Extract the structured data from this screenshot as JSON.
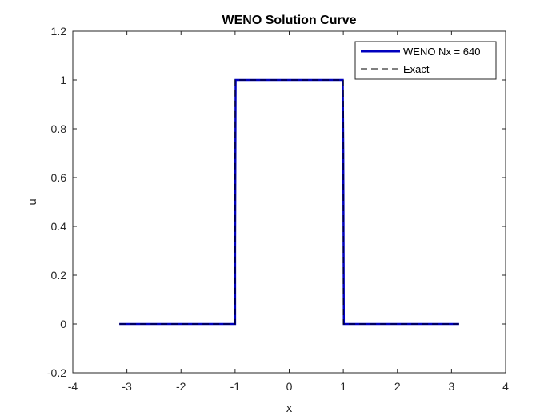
{
  "chart_data": {
    "type": "line",
    "title": "WENO Solution Curve",
    "xlabel": "x",
    "ylabel": "u",
    "xlim": [
      -4,
      4
    ],
    "ylim": [
      -0.2,
      1.2
    ],
    "xticks": [
      -4,
      -3,
      -2,
      -1,
      0,
      1,
      2,
      3,
      4
    ],
    "yticks": [
      -0.2,
      0,
      0.2,
      0.4,
      0.6,
      0.8,
      1,
      1.2
    ],
    "xtick_labels": [
      "-4",
      "-3",
      "-2",
      "-1",
      "0",
      "1",
      "2",
      "3",
      "4"
    ],
    "ytick_labels": [
      "-0.2",
      "0",
      "0.2",
      "0.4",
      "0.6",
      "0.8",
      "1",
      "1.2"
    ],
    "grid": false,
    "legend_position": "top-right",
    "series": [
      {
        "name": "WENO Nx = 640",
        "color": "#0000bf",
        "style": "solid",
        "x": [
          -3.14,
          -1.0,
          -1.0,
          -0.99,
          0.99,
          1.0,
          1.01,
          3.14
        ],
        "y": [
          0,
          0,
          0.3,
          1,
          1,
          0.7,
          0,
          0
        ]
      },
      {
        "name": "Exact",
        "color": "#000000",
        "style": "dashed",
        "x": [
          -3.14,
          -1.0,
          -1.0,
          1.0,
          1.0,
          3.14
        ],
        "y": [
          0,
          0,
          1,
          1,
          0,
          0
        ]
      }
    ]
  }
}
